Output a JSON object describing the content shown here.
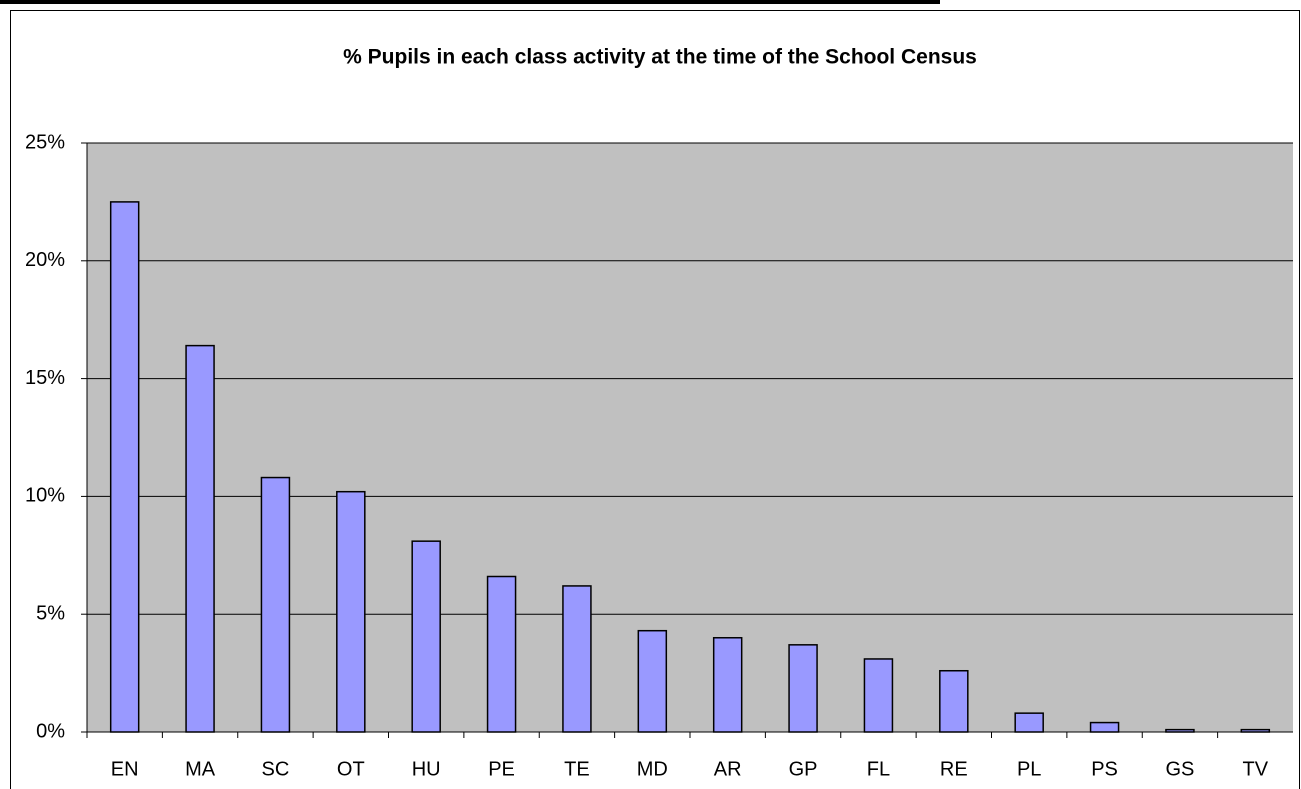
{
  "chart_data": {
    "type": "bar",
    "title": "% Pupils in each class activity at the time of the School Census",
    "categories": [
      "EN",
      "MA",
      "SC",
      "OT",
      "HU",
      "PE",
      "TE",
      "MD",
      "AR",
      "GP",
      "FL",
      "RE",
      "PL",
      "PS",
      "GS",
      "TV"
    ],
    "values": [
      22.5,
      16.4,
      10.8,
      10.2,
      8.1,
      6.6,
      6.2,
      4.3,
      4.0,
      3.7,
      3.1,
      2.6,
      0.8,
      0.4,
      0.1,
      0.1
    ],
    "color": "#9999ff",
    "ylim": [
      0,
      25
    ],
    "yticks": [
      {
        "value": 0,
        "label": "0%"
      },
      {
        "value": 5,
        "label": "5%"
      },
      {
        "value": 10,
        "label": "10%"
      },
      {
        "value": 15,
        "label": "15%"
      },
      {
        "value": 20,
        "label": "20%"
      },
      {
        "value": 25,
        "label": "25%"
      }
    ],
    "grid": true
  }
}
